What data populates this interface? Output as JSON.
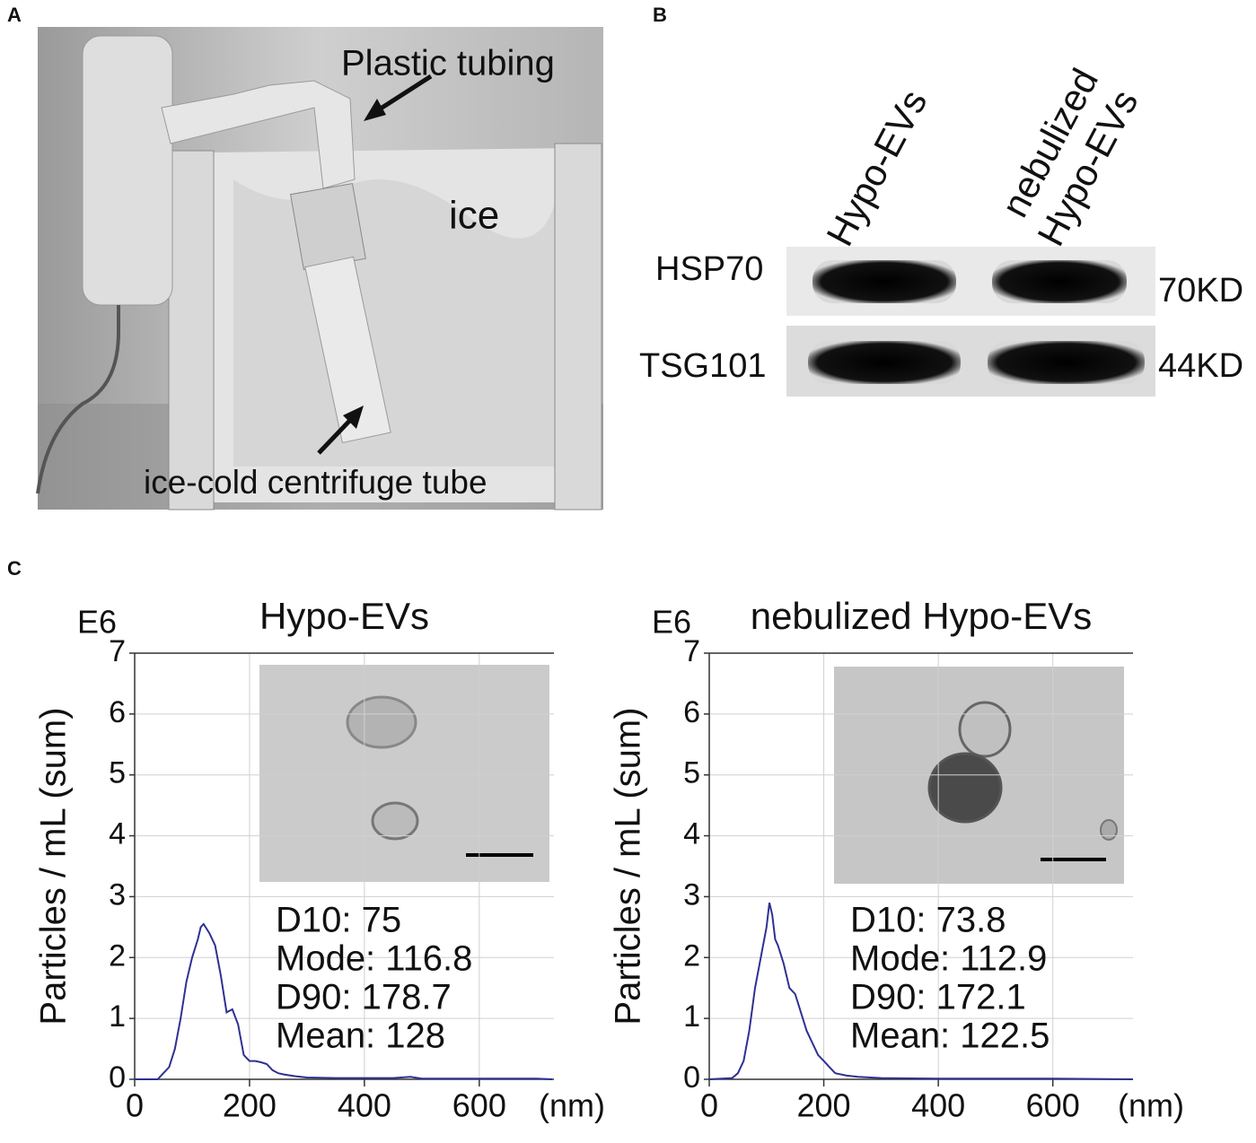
{
  "panel_labels": [
    "A",
    "B",
    "C"
  ],
  "photo": {
    "labels": [
      "Plastic tubing",
      "ice",
      "ice-cold centrifuge tube"
    ]
  },
  "blot": {
    "lanes": [
      [
        "Hypo-EVs"
      ],
      [
        "nebulized",
        "Hypo-EVs"
      ]
    ],
    "bands": [
      {
        "name": "HSP70",
        "size": "70KD"
      },
      {
        "name": "TSG101",
        "size": "44KD"
      }
    ]
  },
  "chart_data": [
    {
      "type": "line",
      "title": "Hypo-EVs",
      "y_unit": "E6",
      "ylabel": "Particles / mL (sum)",
      "x_unit": "(nm)",
      "x": [
        0,
        40,
        50,
        60,
        70,
        80,
        90,
        100,
        110,
        115,
        120,
        130,
        140,
        150,
        160,
        170,
        180,
        190,
        200,
        210,
        220,
        230,
        240,
        250,
        260,
        280,
        300,
        350,
        400,
        450,
        480,
        500,
        600,
        700,
        727
      ],
      "series": [
        {
          "color": "#2e3192",
          "values": [
            0,
            0,
            0.1,
            0.2,
            0.5,
            1.0,
            1.6,
            2.0,
            2.3,
            2.5,
            2.55,
            2.4,
            2.2,
            1.7,
            1.1,
            1.15,
            0.9,
            0.4,
            0.3,
            0.3,
            0.28,
            0.25,
            0.15,
            0.1,
            0.08,
            0.05,
            0.03,
            0.02,
            0.02,
            0.02,
            0.04,
            0.01,
            0.01,
            0.01,
            0
          ]
        }
      ],
      "annotations": [
        "D10: 75",
        "Mode: 116.8",
        "D90: 178.7",
        "Mean: 128"
      ],
      "xlim": [
        0,
        730
      ],
      "ylim": [
        0,
        7
      ],
      "xticks": [
        0,
        200,
        400,
        600
      ],
      "yticks": [
        0,
        1,
        2,
        3,
        4,
        5,
        6,
        7
      ],
      "grid": true
    },
    {
      "type": "line",
      "title": "nebulized Hypo-EVs",
      "y_unit": "E6",
      "ylabel": "Particles / mL (sum)",
      "x_unit": "(nm)",
      "x": [
        0,
        40,
        50,
        60,
        70,
        80,
        90,
        100,
        105,
        110,
        115,
        120,
        130,
        140,
        150,
        160,
        170,
        180,
        190,
        200,
        210,
        220,
        240,
        260,
        300,
        400,
        500,
        600,
        740
      ],
      "series": [
        {
          "color": "#2e3192",
          "values": [
            0,
            0.02,
            0.1,
            0.3,
            0.8,
            1.5,
            2.0,
            2.5,
            2.9,
            2.7,
            2.3,
            2.2,
            1.9,
            1.5,
            1.4,
            1.1,
            0.8,
            0.6,
            0.4,
            0.3,
            0.2,
            0.1,
            0.06,
            0.04,
            0.02,
            0.01,
            0.01,
            0.01,
            0
          ]
        }
      ],
      "annotations": [
        "D10: 73.8",
        "Mode: 112.9",
        "D90: 172.1",
        "Mean: 122.5"
      ],
      "xlim": [
        0,
        740
      ],
      "ylim": [
        0,
        7
      ],
      "xticks": [
        0,
        200,
        400,
        600
      ],
      "yticks": [
        0,
        1,
        2,
        3,
        4,
        5,
        6,
        7
      ],
      "grid": true
    }
  ]
}
